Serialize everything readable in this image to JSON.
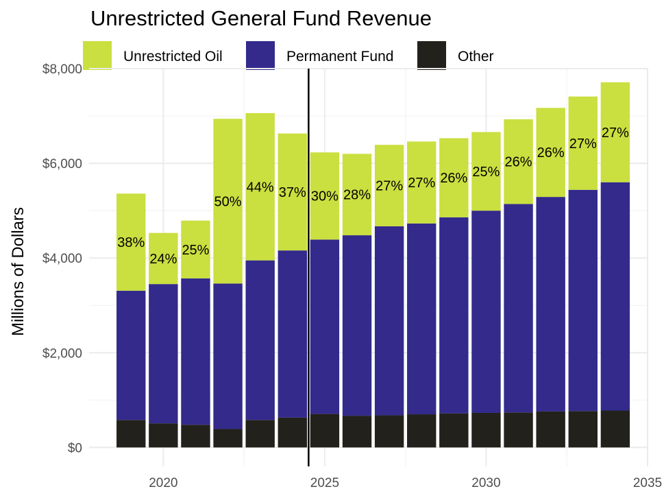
{
  "chart_data": {
    "type": "bar",
    "stacked": true,
    "title": "Unrestricted General Fund Revenue",
    "xlabel": "",
    "ylabel": "Millions of Dollars",
    "xlim": [
      2017.7,
      2035.0
    ],
    "ylim": [
      -400,
      8000
    ],
    "x_ticks": [
      2020,
      2025,
      2030,
      2035
    ],
    "y_ticks": [
      0,
      2000,
      4000,
      6000,
      8000
    ],
    "y_tick_labels": [
      "$0",
      "$2,000",
      "$4,000",
      "$6,000",
      "$8,000"
    ],
    "x_tick_labels": [
      "2020",
      "2025",
      "2030",
      "2035"
    ],
    "reference_line_x": 2024.5,
    "legend_position": "top",
    "categories": [
      2019,
      2020,
      2021,
      2022,
      2023,
      2024,
      2025,
      2026,
      2027,
      2028,
      2029,
      2030,
      2031,
      2032,
      2033,
      2034
    ],
    "series": [
      {
        "name": "Other",
        "color": "#22211c",
        "values": [
          580,
          510,
          480,
          390,
          580,
          630,
          710,
          670,
          680,
          700,
          720,
          730,
          740,
          760,
          770,
          780
        ]
      },
      {
        "name": "Permanent Fund",
        "color": "#332a8c",
        "values": [
          2730,
          2940,
          3090,
          3070,
          3370,
          3530,
          3680,
          3810,
          3990,
          4030,
          4140,
          4270,
          4400,
          4530,
          4670,
          4820
        ]
      },
      {
        "name": "Unrestricted Oil",
        "color": "#cadf40",
        "values": [
          2050,
          1080,
          1220,
          3480,
          3110,
          2470,
          1840,
          1720,
          1720,
          1730,
          1670,
          1660,
          1790,
          1880,
          1970,
          2110
        ]
      }
    ],
    "legend": [
      {
        "name": "Unrestricted Oil",
        "color": "#cadf40"
      },
      {
        "name": "Permanent Fund",
        "color": "#332a8c"
      },
      {
        "name": "Other",
        "color": "#22211c"
      }
    ],
    "oil_share_labels": [
      "38%",
      "24%",
      "25%",
      "50%",
      "44%",
      "37%",
      "30%",
      "28%",
      "27%",
      "27%",
      "26%",
      "25%",
      "26%",
      "26%",
      "27%",
      "27%"
    ]
  }
}
